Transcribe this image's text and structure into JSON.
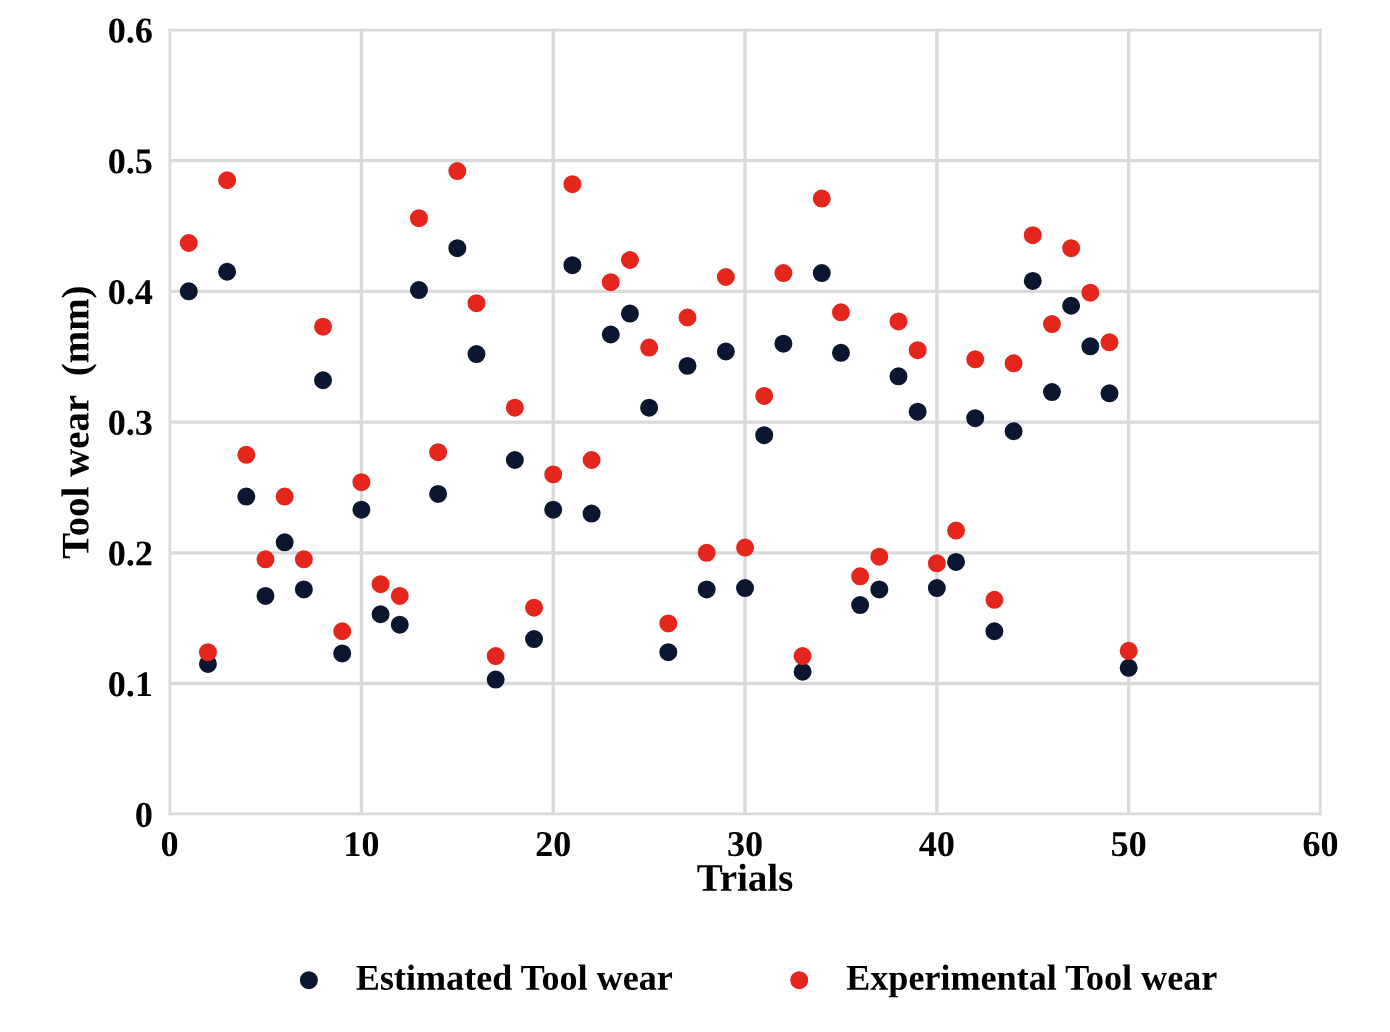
{
  "chart_data": {
    "type": "scatter",
    "xlabel": "Trials",
    "ylabel": "Tool wear  (mm)",
    "xlim": [
      0,
      60
    ],
    "xticks": [
      0,
      10,
      20,
      30,
      40,
      50,
      60
    ],
    "ylim": [
      0,
      0.6
    ],
    "yticks": [
      0,
      0.1,
      0.2,
      0.3,
      0.4,
      0.5,
      0.6
    ],
    "grid": true,
    "legend": "bottom",
    "marker": "circle",
    "x": [
      1,
      2,
      3,
      4,
      5,
      6,
      7,
      8,
      9,
      10,
      11,
      12,
      13,
      14,
      15,
      16,
      17,
      18,
      19,
      20,
      21,
      22,
      23,
      24,
      25,
      26,
      27,
      28,
      29,
      30,
      31,
      32,
      33,
      34,
      35,
      36,
      37,
      38,
      39,
      40,
      41,
      42,
      43,
      44,
      45,
      46,
      47,
      48,
      49,
      50
    ],
    "series": [
      {
        "name": "Estimated Tool wear",
        "color": "#0b1630",
        "values": [
          0.4,
          0.115,
          0.415,
          0.243,
          0.167,
          0.208,
          0.172,
          0.332,
          0.123,
          0.233,
          0.153,
          0.145,
          0.401,
          0.245,
          0.433,
          0.352,
          0.103,
          0.271,
          0.134,
          0.233,
          0.42,
          0.23,
          0.367,
          0.383,
          0.311,
          0.124,
          0.343,
          0.172,
          0.354,
          0.173,
          0.29,
          0.36,
          0.109,
          0.414,
          0.353,
          0.16,
          0.172,
          0.335,
          0.308,
          0.173,
          0.193,
          0.303,
          0.14,
          0.293,
          0.408,
          0.323,
          0.389,
          0.358,
          0.322,
          0.112
        ]
      },
      {
        "name": "Experimental Tool wear",
        "color": "#e5261c",
        "values": [
          0.437,
          0.124,
          0.485,
          0.275,
          0.195,
          0.243,
          0.195,
          0.373,
          0.14,
          0.254,
          0.176,
          0.167,
          0.456,
          0.277,
          0.492,
          0.391,
          0.121,
          0.311,
          0.158,
          0.26,
          0.482,
          0.271,
          0.407,
          0.424,
          0.357,
          0.146,
          0.38,
          0.2,
          0.411,
          0.204,
          0.32,
          0.414,
          0.121,
          0.471,
          0.384,
          0.182,
          0.197,
          0.377,
          0.355,
          0.192,
          0.217,
          0.348,
          0.164,
          0.345,
          0.443,
          0.375,
          0.433,
          0.399,
          0.361,
          0.125
        ]
      }
    ]
  }
}
